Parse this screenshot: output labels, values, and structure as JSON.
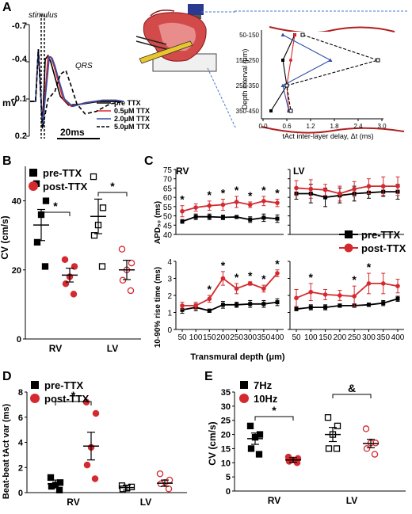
{
  "panels": {
    "A": {
      "letter": "A",
      "stimulus_label": "stimulus",
      "qrs_label": "QRS",
      "y_unit": "mV",
      "y_ticks": [
        "-0.7",
        "-0.4",
        "-0.1",
        "0.2"
      ],
      "scale_bar": "20ms",
      "legend": [
        {
          "label": "pre TTX",
          "color": "#000000",
          "dash": false
        },
        {
          "label": "0.5μM TTX",
          "color": "#e0262b",
          "dash": false
        },
        {
          "label": "2.0μM TTX",
          "color": "#3050a8",
          "dash": false
        },
        {
          "label": "5.0μM TTX",
          "color": "#000000",
          "dash": true
        }
      ]
    },
    "B": {
      "letter": "B"
    },
    "C": {
      "letter": "C"
    },
    "D": {
      "letter": "D"
    },
    "E": {
      "letter": "E"
    }
  },
  "colors": {
    "pre": "#000000",
    "post": "#d42a2f",
    "blue": "#3a55b0"
  },
  "chart_data": [
    {
      "panel": "A",
      "type": "line",
      "title": "",
      "xlabel": "",
      "ylabel": "mV",
      "ylim": [
        -0.7,
        0.2
      ],
      "y_inverted": true,
      "series": [
        {
          "name": "pre TTX",
          "x": [
            0,
            4,
            6,
            9,
            11,
            13,
            15,
            18,
            22,
            28,
            38,
            50,
            60,
            68
          ],
          "y": [
            -0.08,
            -0.08,
            -0.5,
            0.12,
            -0.42,
            -0.45,
            -0.4,
            -0.28,
            -0.12,
            -0.05,
            -0.06,
            -0.08,
            -0.08,
            -0.08
          ]
        },
        {
          "name": "0.5μM TTX",
          "x": [
            0,
            4,
            6,
            9,
            13,
            15,
            17,
            20,
            24,
            30,
            40,
            52,
            62,
            68
          ],
          "y": [
            -0.08,
            -0.08,
            -0.5,
            0.12,
            -0.44,
            -0.44,
            -0.38,
            -0.26,
            -0.1,
            -0.04,
            -0.07,
            -0.09,
            -0.09,
            -0.08
          ]
        },
        {
          "name": "2.0μM TTX",
          "x": [
            0,
            4,
            6,
            9,
            14,
            16,
            18,
            21,
            25,
            31,
            41,
            53,
            63,
            68
          ],
          "y": [
            -0.08,
            -0.08,
            -0.5,
            0.12,
            -0.44,
            -0.43,
            -0.37,
            -0.25,
            -0.1,
            -0.04,
            -0.07,
            -0.09,
            -0.09,
            -0.08
          ]
        },
        {
          "name": "5.0μM TTX",
          "x": [
            0,
            4,
            6,
            9,
            13,
            18,
            22,
            26,
            30,
            34,
            40,
            48,
            58,
            68
          ],
          "y": [
            -0.08,
            -0.08,
            -0.5,
            0.14,
            -0.1,
            -0.16,
            -0.3,
            -0.33,
            -0.2,
            -0.06,
            0.02,
            0.0,
            -0.06,
            -0.08
          ]
        }
      ]
    },
    {
      "panel": "A-inset",
      "type": "line",
      "xlabel": "tAct inter-layer delay, Δt (ms)",
      "ylabel": "Depth interval (μm)",
      "categories": [
        "50-150",
        "150-250",
        "250-350",
        "350-450"
      ],
      "xlim": [
        0,
        3.0
      ],
      "x_ticks": [
        "0.0",
        "0.6",
        "1.2",
        "1.8",
        "2.4",
        "3.0"
      ],
      "series": [
        {
          "name": "pre TTX",
          "values": [
            0.8,
            0.5,
            0.6,
            0.2
          ]
        },
        {
          "name": "0.5μM TTX",
          "values": [
            0.8,
            0.7,
            0.6,
            0.65
          ]
        },
        {
          "name": "2.0μM TTX",
          "values": [
            0.5,
            1.7,
            0.5,
            0.65
          ]
        },
        {
          "name": "5.0μM TTX",
          "values": [
            1.0,
            2.9,
            0.6,
            0.7
          ]
        }
      ]
    },
    {
      "panel": "B",
      "type": "scatter",
      "ylabel": "CV (cm/s)",
      "ylim": [
        0,
        50
      ],
      "y_ticks": [
        "0",
        "20",
        "40"
      ],
      "categories": [
        "RV",
        "LV"
      ],
      "legend": [
        "pre-TTX",
        "post-TTX"
      ],
      "significance": [
        "*",
        "*"
      ],
      "groups": [
        {
          "category": "RV",
          "name": "pre-TTX",
          "filled": true,
          "values": [
            45,
            40,
            36,
            28,
            21
          ],
          "mean": 33,
          "sem": 4.5
        },
        {
          "category": "RV",
          "name": "post-TTX",
          "filled": true,
          "values": [
            23,
            21,
            18,
            16,
            13
          ],
          "mean": 18.5,
          "sem": 2
        },
        {
          "category": "LV",
          "name": "pre-TTX",
          "filled": false,
          "values": [
            47,
            38,
            33,
            30,
            21
          ],
          "mean": 35.5,
          "sem": 5
        },
        {
          "category": "LV",
          "name": "post-TTX",
          "filled": false,
          "values": [
            26,
            22,
            20,
            17,
            14
          ],
          "mean": 20,
          "sem": 2.8
        }
      ]
    },
    {
      "panel": "C-top",
      "type": "line",
      "ylabel": "APD₅₀ (ms)",
      "ylim": [
        40,
        75
      ],
      "y_ticks": [
        "40",
        "45",
        "50",
        "55",
        "60",
        "65",
        "70",
        "75"
      ],
      "x": [
        50,
        100,
        150,
        200,
        250,
        300,
        350,
        400
      ],
      "legend": [
        "pre-TTX",
        "post-TTX"
      ],
      "facets": [
        {
          "name": "RV",
          "series": [
            {
              "name": "pre-TTX",
              "values": [
                47,
                49.5,
                49.5,
                49.2,
                49.4,
                48,
                49,
                48.5
              ],
              "err": [
                1,
                1.5,
                1.5,
                1.2,
                0.5,
                1.5,
                2,
                2
              ]
            },
            {
              "name": "post-TTX",
              "values": [
                52.5,
                54.5,
                55.5,
                56,
                57.5,
                56,
                58,
                57
              ],
              "err": [
                3,
                2,
                2.5,
                3,
                3,
                1.5,
                2.5,
                2
              ]
            }
          ],
          "significance_x": [
            50,
            150,
            200,
            250,
            300,
            350,
            400
          ]
        },
        {
          "name": "LV",
          "series": [
            {
              "name": "pre-TTX",
              "values": [
                62,
                62,
                60,
                61,
                62,
                62.5,
                63,
                63
              ],
              "err": [
                3,
                5,
                5,
                4,
                4,
                3,
                2.5,
                4
              ]
            },
            {
              "name": "post-TTX",
              "values": [
                65,
                64.5,
                64,
                62,
                64.5,
                66,
                66,
                66
              ],
              "err": [
                4,
                5,
                3,
                4,
                4,
                4,
                5,
                5
              ]
            }
          ],
          "significance_x": []
        }
      ]
    },
    {
      "panel": "C-bottom",
      "type": "line",
      "ylabel": "10-90% rise time (ms)",
      "xlabel": "Transmural depth (μm)",
      "ylim": [
        0,
        4
      ],
      "y_ticks": [
        "0",
        "1",
        "2",
        "3",
        "4"
      ],
      "x": [
        50,
        100,
        150,
        200,
        250,
        300,
        350,
        400
      ],
      "x_ticks": [
        "50",
        "100",
        "150",
        "200",
        "250",
        "300",
        "350",
        "400"
      ],
      "facets": [
        {
          "name": "RV",
          "series": [
            {
              "name": "pre-TTX",
              "values": [
                1.15,
                1.3,
                1.1,
                1.45,
                1.45,
                1.5,
                1.5,
                1.6
              ],
              "err": [
                0.2,
                0.2,
                0.1,
                0.2,
                0.15,
                0.2,
                0.2,
                0.2
              ]
            },
            {
              "name": "post-TTX",
              "values": [
                1.4,
                1.4,
                1.8,
                3.0,
                2.4,
                2.7,
                2.4,
                3.3
              ],
              "err": [
                0.2,
                0.2,
                0.2,
                0.4,
                0.3,
                0.1,
                0.2,
                0.2
              ]
            }
          ],
          "significance_x": [
            150,
            200,
            250,
            300,
            350,
            400
          ]
        },
        {
          "name": "LV",
          "series": [
            {
              "name": "pre-TTX",
              "values": [
                1.2,
                1.3,
                1.3,
                1.4,
                1.4,
                1.45,
                1.55,
                1.8
              ],
              "err": [
                0.1,
                0.15,
                0.15,
                0.1,
                0.1,
                0.1,
                0.15,
                0.15
              ]
            },
            {
              "name": "post-TTX",
              "values": [
                1.85,
                2.2,
                2.05,
                2.0,
                1.95,
                2.7,
                2.7,
                2.55
              ],
              "err": [
                0.5,
                0.5,
                0.3,
                0.3,
                0.6,
                0.6,
                0.6,
                0.4
              ]
            }
          ],
          "significance_x": [
            100,
            250,
            300
          ]
        }
      ]
    },
    {
      "panel": "D",
      "type": "scatter",
      "ylabel": "Beat-beat tAct var (ms)",
      "ylim": [
        0,
        8
      ],
      "y_ticks": [
        "0",
        "2",
        "4",
        "6",
        "8"
      ],
      "categories": [
        "RV",
        "LV"
      ],
      "legend": [
        "pre-TTX",
        "post-TTX"
      ],
      "significance": [
        "*"
      ],
      "groups": [
        {
          "category": "RV",
          "name": "pre-TTX",
          "filled": true,
          "values": [
            1.2,
            0.8,
            0.6,
            0.5,
            0.2
          ],
          "mean": 0.7,
          "sem": 0.3
        },
        {
          "category": "RV",
          "name": "post-TTX",
          "filled": true,
          "values": [
            7.2,
            6.3,
            3.6,
            2.2,
            1.1
          ],
          "mean": 3.7,
          "sem": 1.1
        },
        {
          "category": "LV",
          "name": "pre-TTX",
          "filled": false,
          "values": [
            0.55,
            0.45,
            0.35,
            0.3
          ],
          "mean": 0.4,
          "sem": 0.2
        },
        {
          "category": "LV",
          "name": "post-TTX",
          "filled": false,
          "values": [
            1.5,
            1.0,
            0.8,
            0.7,
            0.3
          ],
          "mean": 0.75,
          "sem": 0.25
        }
      ]
    },
    {
      "panel": "E",
      "type": "scatter",
      "ylabel": "CV (cm/s)",
      "ylim": [
        0,
        35
      ],
      "y_ticks": [
        "0",
        "5",
        "10",
        "15",
        "20",
        "25",
        "30",
        "35"
      ],
      "categories": [
        "RV",
        "LV"
      ],
      "legend": [
        "7Hz",
        "10Hz"
      ],
      "significance": [
        "*",
        "&"
      ],
      "groups": [
        {
          "category": "RV",
          "name": "7Hz",
          "filled": true,
          "values": [
            23,
            20,
            19,
            15,
            13
          ],
          "mean": 18.5,
          "sem": 2
        },
        {
          "category": "RV",
          "name": "10Hz",
          "filled": true,
          "values": [
            12,
            11.5,
            11,
            10.5,
            10
          ],
          "mean": 11,
          "sem": 0.8
        },
        {
          "category": "LV",
          "name": "7Hz",
          "filled": false,
          "values": [
            26,
            23,
            20,
            15,
            15
          ],
          "mean": 20,
          "sem": 2.5
        },
        {
          "category": "LV",
          "name": "10Hz",
          "filled": false,
          "values": [
            22,
            17,
            17,
            15,
            13
          ],
          "mean": 16.8,
          "sem": 1.5
        }
      ]
    }
  ]
}
